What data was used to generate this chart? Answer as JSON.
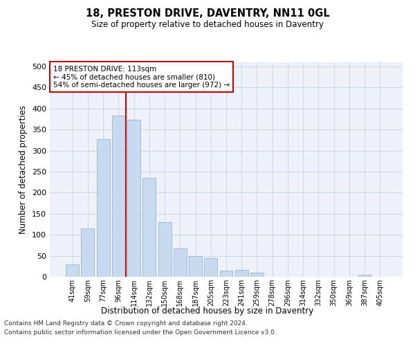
{
  "title1": "18, PRESTON DRIVE, DAVENTRY, NN11 0GL",
  "title2": "Size of property relative to detached houses in Daventry",
  "xlabel": "Distribution of detached houses by size in Daventry",
  "ylabel": "Number of detached properties",
  "categories": [
    "41sqm",
    "59sqm",
    "77sqm",
    "96sqm",
    "114sqm",
    "132sqm",
    "150sqm",
    "168sqm",
    "187sqm",
    "205sqm",
    "223sqm",
    "241sqm",
    "259sqm",
    "278sqm",
    "296sqm",
    "314sqm",
    "332sqm",
    "350sqm",
    "369sqm",
    "387sqm",
    "405sqm"
  ],
  "values": [
    29,
    115,
    328,
    384,
    373,
    235,
    130,
    68,
    50,
    45,
    15,
    16,
    10,
    0,
    0,
    0,
    0,
    0,
    0,
    5,
    0
  ],
  "bar_color": "#c8daf0",
  "bar_edge_color": "#a0bcd8",
  "property_bin_index": 4,
  "vline_color": "#cc0000",
  "annotation_text": "18 PRESTON DRIVE: 113sqm\n← 45% of detached houses are smaller (810)\n54% of semi-detached houses are larger (972) →",
  "annotation_box_color": "#ffffff",
  "annotation_box_edge": "#cc0000",
  "grid_color": "#d0d8e8",
  "background_color": "#eef2f8",
  "footer_line1": "Contains HM Land Registry data © Crown copyright and database right 2024.",
  "footer_line2": "Contains public sector information licensed under the Open Government Licence v3.0.",
  "ylim": [
    0,
    510
  ],
  "yticks": [
    0,
    50,
    100,
    150,
    200,
    250,
    300,
    350,
    400,
    450,
    500
  ]
}
